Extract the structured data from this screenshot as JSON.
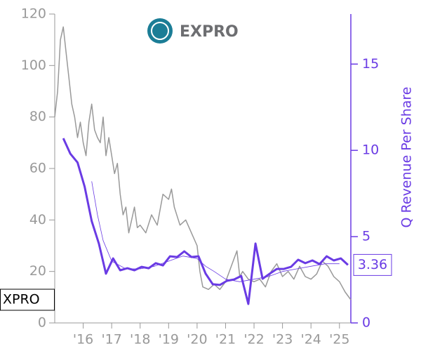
{
  "chart_data": {
    "type": "line",
    "logo_text": "EXPRO",
    "y2label": "Q Revenue Per Share",
    "xlim": [
      2015.0,
      2025.4
    ],
    "xticks": [
      {
        "value": 2016,
        "label": "'16"
      },
      {
        "value": 2017,
        "label": "'17"
      },
      {
        "value": 2018,
        "label": "'18"
      },
      {
        "value": 2019,
        "label": "'19"
      },
      {
        "value": 2020,
        "label": "'20"
      },
      {
        "value": 2021,
        "label": "'21"
      },
      {
        "value": 2022,
        "label": "'22"
      },
      {
        "value": 2023,
        "label": "'23"
      },
      {
        "value": 2024,
        "label": "'24"
      },
      {
        "value": 2025,
        "label": "'25"
      }
    ],
    "ylim": [
      0,
      120
    ],
    "yticks": [
      0,
      20,
      40,
      60,
      80,
      100,
      120
    ],
    "y2lim": [
      0,
      17.9
    ],
    "y2ticks": [
      0,
      5,
      10,
      15
    ],
    "series": [
      {
        "name": "XPRO",
        "color": "#999999",
        "width": 1.5,
        "x": [
          2015.0,
          2015.1,
          2015.2,
          2015.3,
          2015.4,
          2015.5,
          2015.6,
          2015.7,
          2015.8,
          2015.9,
          2016.0,
          2016.1,
          2016.2,
          2016.3,
          2016.4,
          2016.5,
          2016.6,
          2016.7,
          2016.8,
          2016.9,
          2017.0,
          2017.1,
          2017.2,
          2017.3,
          2017.4,
          2017.5,
          2017.6,
          2017.7,
          2017.8,
          2017.9,
          2018.0,
          2018.2,
          2018.4,
          2018.6,
          2018.8,
          2019.0,
          2019.1,
          2019.2,
          2019.4,
          2019.6,
          2019.8,
          2020.0,
          2020.1,
          2020.2,
          2020.4,
          2020.6,
          2020.8,
          2021.0,
          2021.2,
          2021.4,
          2021.5,
          2021.6,
          2021.8,
          2022.0,
          2022.2,
          2022.4,
          2022.6,
          2022.8,
          2023.0,
          2023.2,
          2023.4,
          2023.6,
          2023.8,
          2024.0,
          2024.2,
          2024.4,
          2024.6,
          2024.8,
          2025.0,
          2025.2,
          2025.4
        ],
        "values": [
          80,
          90,
          110,
          115,
          105,
          95,
          85,
          80,
          72,
          78,
          70,
          65,
          78,
          85,
          75,
          72,
          70,
          80,
          65,
          72,
          65,
          58,
          62,
          50,
          42,
          45,
          35,
          40,
          45,
          37,
          38,
          35,
          42,
          38,
          50,
          48,
          52,
          45,
          38,
          40,
          35,
          30,
          20,
          14,
          13,
          15,
          13,
          16,
          22,
          28,
          18,
          20,
          17,
          16,
          17,
          14,
          20,
          23,
          18,
          20,
          17,
          22,
          18,
          17,
          19,
          24,
          22,
          18,
          16,
          12,
          9
        ]
      },
      {
        "color": "#6a3be4",
        "width": 0.8,
        "x": [
          2016.3,
          2016.5,
          2016.7,
          2017.0,
          2017.5,
          2018.0,
          2018.5,
          2019.0,
          2019.5,
          2020.0,
          2020.3,
          2020.6,
          2021.0,
          2021.5,
          2022.0,
          2022.5,
          2023.0,
          2023.5,
          2024.0,
          2024.5,
          2025.0
        ],
        "values": [
          55,
          42,
          32,
          24,
          21,
          21,
          22,
          24,
          26,
          25,
          22,
          20,
          17,
          16,
          17,
          18,
          20,
          21,
          22,
          23,
          23
        ]
      },
      {
        "color": "#6a3be4",
        "width": 3,
        "axis": "y2",
        "x": [
          2015.3,
          2015.55,
          2015.8,
          2016.05,
          2016.3,
          2016.55,
          2016.8,
          2017.05,
          2017.3,
          2017.55,
          2017.8,
          2018.05,
          2018.3,
          2018.55,
          2018.8,
          2019.05,
          2019.3,
          2019.55,
          2019.8,
          2020.05,
          2020.3,
          2020.55,
          2020.8,
          2021.05,
          2021.3,
          2021.55,
          2021.8,
          2022.05,
          2022.3,
          2022.55,
          2022.8,
          2023.05,
          2023.3,
          2023.55,
          2023.8,
          2024.05,
          2024.3,
          2024.55,
          2024.8,
          2025.05,
          2025.3
        ],
        "values": [
          10.7,
          9.8,
          9.3,
          7.9,
          5.9,
          4.6,
          2.85,
          3.74,
          3.05,
          3.17,
          3.05,
          3.25,
          3.17,
          3.46,
          3.33,
          3.86,
          3.82,
          4.15,
          3.82,
          3.86,
          2.85,
          2.24,
          2.2,
          2.44,
          2.52,
          2.72,
          1.1,
          4.6,
          2.56,
          2.85,
          3.13,
          3.13,
          3.25,
          3.66,
          3.46,
          3.62,
          3.41,
          3.86,
          3.62,
          3.74,
          3.36
        ]
      }
    ]
  }
}
